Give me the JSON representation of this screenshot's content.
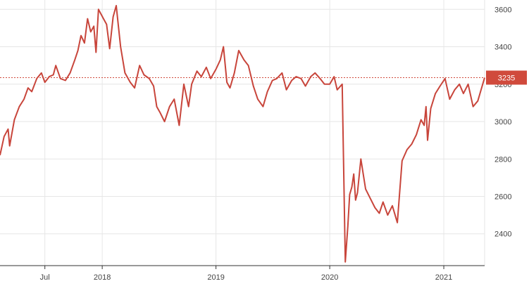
{
  "chart_data": {
    "type": "line",
    "title": "",
    "xlabel": "",
    "ylabel": "",
    "x_ticks": [
      "Jul",
      "2018",
      "2019",
      "2020",
      "2021"
    ],
    "y_ticks": [
      2400,
      2600,
      2800,
      3000,
      3200,
      3400,
      3600
    ],
    "ylim": [
      2230,
      3650
    ],
    "xlim": [
      "2017-02-07",
      "2021-05-12"
    ],
    "grid": true,
    "last_value": 3235,
    "last_value_label": "3235",
    "colors": {
      "line": "#c8453b",
      "last_value_bg": "#d04a3c",
      "last_value_text": "#ffffff",
      "grid": "#e6e6e6"
    },
    "series": [
      {
        "x": [
          "2017-02-07",
          "2017-02-20",
          "2017-03-05",
          "2017-03-10",
          "2017-03-25",
          "2017-04-10",
          "2017-04-25",
          "2017-05-08",
          "2017-05-20",
          "2017-06-05",
          "2017-06-20",
          "2017-07-01",
          "2017-07-15",
          "2017-07-28",
          "2017-08-05",
          "2017-08-20",
          "2017-09-05",
          "2017-09-20",
          "2017-10-05",
          "2017-10-15",
          "2017-10-25",
          "2017-11-05",
          "2017-11-15",
          "2017-11-25",
          "2017-12-05",
          "2017-12-12",
          "2017-12-20",
          "2018-01-05",
          "2018-01-15",
          "2018-01-25",
          "2018-02-05",
          "2018-02-15",
          "2018-03-01",
          "2018-03-15",
          "2018-04-01",
          "2018-04-15",
          "2018-05-01",
          "2018-05-15",
          "2018-06-01",
          "2018-06-15",
          "2018-06-25",
          "2018-07-05",
          "2018-07-20",
          "2018-08-05",
          "2018-08-20",
          "2018-09-05",
          "2018-09-20",
          "2018-10-05",
          "2018-10-15",
          "2018-11-01",
          "2018-11-15",
          "2018-12-01",
          "2018-12-15",
          "2019-01-01",
          "2019-01-15",
          "2019-01-25",
          "2019-02-05",
          "2019-02-15",
          "2019-03-01",
          "2019-03-15",
          "2019-04-01",
          "2019-04-15",
          "2019-05-01",
          "2019-05-15",
          "2019-06-01",
          "2019-06-15",
          "2019-07-01",
          "2019-07-15",
          "2019-08-01",
          "2019-08-15",
          "2019-09-01",
          "2019-09-15",
          "2019-10-01",
          "2019-10-15",
          "2019-11-01",
          "2019-11-15",
          "2019-12-01",
          "2019-12-15",
          "2020-01-01",
          "2020-01-15",
          "2020-01-25",
          "2020-02-10",
          "2020-02-20",
          "2020-02-28",
          "2020-03-05",
          "2020-03-12",
          "2020-03-18",
          "2020-03-24",
          "2020-03-30",
          "2020-04-10",
          "2020-04-25",
          "2020-05-10",
          "2020-05-25",
          "2020-06-08",
          "2020-06-20",
          "2020-07-05",
          "2020-07-20",
          "2020-08-05",
          "2020-08-20",
          "2020-09-05",
          "2020-09-20",
          "2020-10-05",
          "2020-10-20",
          "2020-10-30",
          "2020-11-05",
          "2020-11-10",
          "2020-11-20",
          "2020-12-05",
          "2020-12-20",
          "2021-01-05",
          "2021-01-20",
          "2021-02-05",
          "2021-02-20",
          "2021-03-05",
          "2021-03-20",
          "2021-04-05",
          "2021-04-20",
          "2021-05-12"
        ],
        "values": [
          2820,
          2920,
          2960,
          2870,
          3010,
          3080,
          3120,
          3180,
          3160,
          3230,
          3260,
          3210,
          3240,
          3250,
          3300,
          3230,
          3220,
          3260,
          3330,
          3380,
          3460,
          3420,
          3550,
          3480,
          3510,
          3370,
          3600,
          3550,
          3520,
          3390,
          3560,
          3620,
          3400,
          3260,
          3210,
          3180,
          3300,
          3250,
          3230,
          3190,
          3080,
          3050,
          3000,
          3080,
          3120,
          2980,
          3200,
          3080,
          3200,
          3270,
          3240,
          3290,
          3230,
          3280,
          3330,
          3400,
          3210,
          3180,
          3260,
          3380,
          3330,
          3300,
          3190,
          3120,
          3080,
          3160,
          3220,
          3230,
          3260,
          3170,
          3220,
          3240,
          3230,
          3190,
          3240,
          3260,
          3230,
          3200,
          3200,
          3240,
          3170,
          3200,
          2250,
          2440,
          2610,
          2650,
          2720,
          2580,
          2620,
          2800,
          2640,
          2590,
          2540,
          2510,
          2570,
          2500,
          2550,
          2460,
          2790,
          2850,
          2880,
          2930,
          3010,
          2980,
          3080,
          2900,
          3070,
          3150,
          3190,
          3230,
          3120,
          3170,
          3200,
          3150,
          3200,
          3080,
          3110,
          3235
        ]
      }
    ]
  }
}
